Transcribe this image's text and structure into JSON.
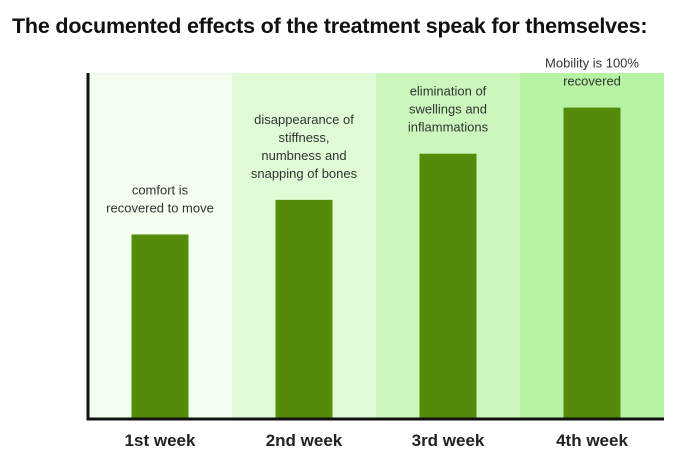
{
  "title": "The documented effects of the treatment speak for themselves:",
  "chart_data": {
    "type": "bar",
    "categories": [
      "1st week",
      "2nd week",
      "3rd week",
      "4th week"
    ],
    "values": [
      1.6,
      1.9,
      2.3,
      2.7
    ],
    "ylim": [
      0,
      3.0
    ],
    "annotations": [
      [
        "comfort is",
        "recovered to move"
      ],
      [
        "disappearance of",
        "stiffness,",
        "numbness and",
        "snapping of bones"
      ],
      [
        "elimination of",
        "swellings and",
        "inflammations"
      ],
      [
        "Mobility is 100%",
        "recovered"
      ]
    ],
    "bar_color": "#548c0a",
    "band_colors": [
      "#f3fdf0",
      "#dffcd7",
      "#cbf7bd",
      "#b6f3a2"
    ],
    "axis_color": "#111111",
    "grid": false
  }
}
